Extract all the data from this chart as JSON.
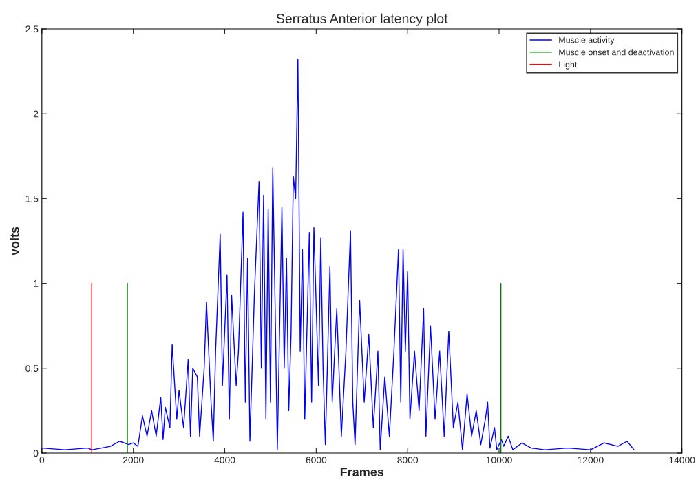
{
  "chart_data": {
    "type": "line",
    "title": "Serratus Anterior latency plot",
    "xlabel": "Frames",
    "ylabel": "volts",
    "xlim": [
      0,
      14000
    ],
    "xticks": [
      0,
      2000,
      4000,
      6000,
      8000,
      10000,
      12000,
      14000
    ],
    "ylim": [
      0,
      2.5
    ],
    "yticks": [
      0,
      0.5,
      1,
      1.5,
      2,
      2.5
    ],
    "grid": false,
    "legend": "top right",
    "series": [
      {
        "name": "Muscle activity",
        "color": "#0000ff",
        "x": [
          0,
          500,
          1000,
          1100,
          1500,
          1700,
          1900,
          2000,
          2100,
          2200,
          2300,
          2400,
          2500,
          2600,
          2650,
          2700,
          2800,
          2850,
          2950,
          3000,
          3100,
          3200,
          3250,
          3300,
          3400,
          3450,
          3550,
          3600,
          3700,
          3750,
          3800,
          3900,
          3950,
          4050,
          4100,
          4150,
          4250,
          4300,
          4400,
          4450,
          4500,
          4550,
          4650,
          4750,
          4800,
          4850,
          4900,
          4950,
          5000,
          5050,
          5100,
          5150,
          5250,
          5300,
          5350,
          5400,
          5450,
          5500,
          5550,
          5600,
          5650,
          5700,
          5750,
          5850,
          5900,
          5950,
          6050,
          6100,
          6150,
          6200,
          6300,
          6350,
          6450,
          6550,
          6650,
          6750,
          6800,
          6850,
          6950,
          7050,
          7150,
          7250,
          7350,
          7400,
          7500,
          7600,
          7700,
          7800,
          7850,
          7900,
          7950,
          8000,
          8050,
          8150,
          8250,
          8350,
          8400,
          8500,
          8600,
          8700,
          8800,
          8900,
          9000,
          9100,
          9200,
          9300,
          9400,
          9500,
          9600,
          9700,
          9750,
          9800,
          9900,
          9950,
          10050,
          10100,
          10200,
          10300,
          10500,
          10700,
          11000,
          11500,
          12000,
          12300,
          12600,
          12800,
          12950
        ],
        "values": [
          0.03,
          0.02,
          0.03,
          0.02,
          0.04,
          0.07,
          0.05,
          0.06,
          0.04,
          0.22,
          0.1,
          0.25,
          0.1,
          0.33,
          0.08,
          0.27,
          0.15,
          0.64,
          0.2,
          0.37,
          0.15,
          0.55,
          0.1,
          0.5,
          0.45,
          0.1,
          0.5,
          0.89,
          0.3,
          0.07,
          0.6,
          1.29,
          0.4,
          1.05,
          0.2,
          0.93,
          0.4,
          0.6,
          1.42,
          0.3,
          1.15,
          0.07,
          0.95,
          1.6,
          0.5,
          1.52,
          0.2,
          1.44,
          0.3,
          1.68,
          0.9,
          0.02,
          1.45,
          0.5,
          1.15,
          0.25,
          0.7,
          1.63,
          1.5,
          2.32,
          0.6,
          1.2,
          0.2,
          1.3,
          0.3,
          1.33,
          0.4,
          1.27,
          0.5,
          0.05,
          1.1,
          0.3,
          0.85,
          0.1,
          0.6,
          1.31,
          0.3,
          0.05,
          0.9,
          0.3,
          0.7,
          0.15,
          0.6,
          0.02,
          0.45,
          0.1,
          0.6,
          1.2,
          0.3,
          1.2,
          0.6,
          1.07,
          0.2,
          0.6,
          0.25,
          0.85,
          0.1,
          0.75,
          0.2,
          0.6,
          0.1,
          0.72,
          0.15,
          0.3,
          0.02,
          0.35,
          0.1,
          0.25,
          0.05,
          0.2,
          0.3,
          0.03,
          0.15,
          0.02,
          0.08,
          0.04,
          0.1,
          0.02,
          0.06,
          0.03,
          0.02,
          0.03,
          0.02,
          0.06,
          0.04,
          0.07,
          0.02
        ]
      },
      {
        "name": "Muscle onset and deactivation",
        "color": "#008000",
        "x": [
          1870,
          1870
        ],
        "values": [
          0,
          1
        ]
      },
      {
        "color": "#008000",
        "x": [
          10040,
          10040
        ],
        "values": [
          0,
          1
        ]
      },
      {
        "name": "Light",
        "color": "#ff0000",
        "x": [
          1090,
          1090
        ],
        "values": [
          0,
          1
        ]
      }
    ]
  }
}
